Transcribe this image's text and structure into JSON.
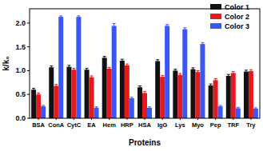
{
  "chart_data": {
    "type": "bar",
    "x_label": "Proteins",
    "y_label": "k/k₀",
    "categories": [
      "BSA",
      "ConA",
      "CytC",
      "EA",
      "Hem",
      "HRP",
      "HSA",
      "IgG",
      "Lys",
      "Myo",
      "Pep",
      "TRF",
      "Try"
    ],
    "series": [
      {
        "name": "Color 1",
        "color": "#111111",
        "values": [
          0.6,
          1.07,
          1.08,
          1.02,
          1.27,
          1.21,
          0.65,
          1.2,
          1.0,
          1.03,
          0.69,
          0.89,
          0.98
        ],
        "errors": [
          0.03,
          0.03,
          0.03,
          0.03,
          0.03,
          0.03,
          0.03,
          0.03,
          0.03,
          0.03,
          0.03,
          0.03,
          0.03
        ]
      },
      {
        "name": "Color 2",
        "color": "#e41a1c",
        "values": [
          0.5,
          0.68,
          1.02,
          0.86,
          1.04,
          1.11,
          0.53,
          0.87,
          0.91,
          0.97,
          0.8,
          0.95,
          0.99
        ],
        "errors": [
          0.03,
          0.03,
          0.03,
          0.03,
          0.03,
          0.03,
          0.03,
          0.03,
          0.03,
          0.03,
          0.03,
          0.03,
          0.03
        ]
      },
      {
        "name": "Color 3",
        "color": "#3a57f5",
        "values": [
          0.25,
          2.13,
          2.13,
          0.22,
          1.94,
          0.42,
          0.22,
          1.94,
          1.87,
          1.56,
          0.25,
          0.21,
          0.2
        ],
        "errors": [
          0.02,
          0.02,
          0.02,
          0.02,
          0.05,
          0.02,
          0.02,
          0.03,
          0.03,
          0.03,
          0.02,
          0.02,
          0.02
        ]
      }
    ],
    "ylim": [
      0,
      2.3
    ],
    "yticks": [
      {
        "value": 0,
        "label": "0.0"
      },
      {
        "value": 0.5,
        "label": "0.5"
      },
      {
        "value": 1,
        "label": "1.0"
      },
      {
        "value": 1.5,
        "label": "1.5"
      },
      {
        "value": 2,
        "label": "2.0"
      }
    ],
    "legend": "top-right",
    "grid": false
  }
}
